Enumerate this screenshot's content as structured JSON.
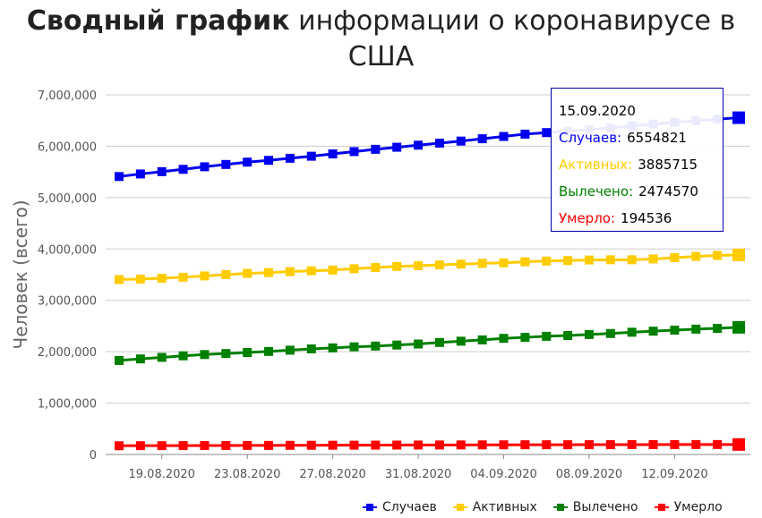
{
  "title_bold": "Сводный график",
  "title_rest": " информации о коронавирусе в США",
  "tooltip": {
    "date": "15.09.2020",
    "rows": [
      {
        "label": "Случаев:",
        "value": "6554821",
        "color": "#0000ee"
      },
      {
        "label": "Активных:",
        "value": "3885715",
        "color": "#ffcc00"
      },
      {
        "label": "Вылечено:",
        "value": "2474570",
        "color": "#008000"
      },
      {
        "label": "Умерло:",
        "value": "194536",
        "color": "#ff0000"
      }
    ]
  },
  "chart_data": {
    "type": "line",
    "ylabel": "Человек (всего)",
    "ylim": [
      0,
      7000000
    ],
    "yticks": [
      0,
      1000000,
      2000000,
      3000000,
      4000000,
      5000000,
      6000000,
      7000000
    ],
    "ytick_labels": [
      "0",
      "1,000,000",
      "2,000,000",
      "3,000,000",
      "4,000,000",
      "5,000,000",
      "6,000,000",
      "7,000,000"
    ],
    "x": [
      "17.08.2020",
      "18.08.2020",
      "19.08.2020",
      "20.08.2020",
      "21.08.2020",
      "22.08.2020",
      "23.08.2020",
      "24.08.2020",
      "25.08.2020",
      "26.08.2020",
      "27.08.2020",
      "28.08.2020",
      "29.08.2020",
      "30.08.2020",
      "31.08.2020",
      "01.09.2020",
      "02.09.2020",
      "03.09.2020",
      "04.09.2020",
      "05.09.2020",
      "06.09.2020",
      "07.09.2020",
      "08.09.2020",
      "09.09.2020",
      "10.09.2020",
      "11.09.2020",
      "12.09.2020",
      "13.09.2020",
      "14.09.2020",
      "15.09.2020"
    ],
    "xtick_labels": [
      "19.08.2020",
      "23.08.2020",
      "27.08.2020",
      "31.08.2020",
      "04.09.2020",
      "08.09.2020",
      "12.09.2020"
    ],
    "legend_position": "bottom-right",
    "grid": true,
    "series": [
      {
        "name": "Случаев",
        "color": "#0000ee",
        "values": [
          5410000,
          5460000,
          5505000,
          5550000,
          5600000,
          5645000,
          5690000,
          5725000,
          5765000,
          5805000,
          5850000,
          5895000,
          5940000,
          5980000,
          6020000,
          6060000,
          6100000,
          6145000,
          6190000,
          6235000,
          6265000,
          6290000,
          6320000,
          6355000,
          6395000,
          6430000,
          6465000,
          6495000,
          6525000,
          6554821
        ]
      },
      {
        "name": "Активных",
        "color": "#ffcc00",
        "values": [
          3405000,
          3415000,
          3430000,
          3450000,
          3475000,
          3500000,
          3525000,
          3540000,
          3560000,
          3575000,
          3590000,
          3615000,
          3640000,
          3660000,
          3675000,
          3690000,
          3705000,
          3720000,
          3730000,
          3750000,
          3765000,
          3775000,
          3785000,
          3790000,
          3790000,
          3805000,
          3830000,
          3855000,
          3875000,
          3885715
        ]
      },
      {
        "name": "Вылечено",
        "color": "#008000",
        "values": [
          1830000,
          1860000,
          1890000,
          1920000,
          1945000,
          1965000,
          1985000,
          2005000,
          2030000,
          2055000,
          2075000,
          2095000,
          2110000,
          2130000,
          2150000,
          2180000,
          2205000,
          2230000,
          2260000,
          2280000,
          2300000,
          2315000,
          2335000,
          2355000,
          2380000,
          2400000,
          2420000,
          2440000,
          2455000,
          2474570
        ]
      },
      {
        "name": "Умерло",
        "color": "#ff0000",
        "values": [
          170000,
          171000,
          172000,
          173000,
          174000,
          175000,
          176000,
          177000,
          178000,
          179000,
          180000,
          181000,
          182000,
          183000,
          184000,
          185000,
          186000,
          187000,
          188000,
          189000,
          189500,
          190000,
          190500,
          191000,
          191500,
          192000,
          192800,
          193400,
          194000,
          194536
        ]
      }
    ]
  }
}
